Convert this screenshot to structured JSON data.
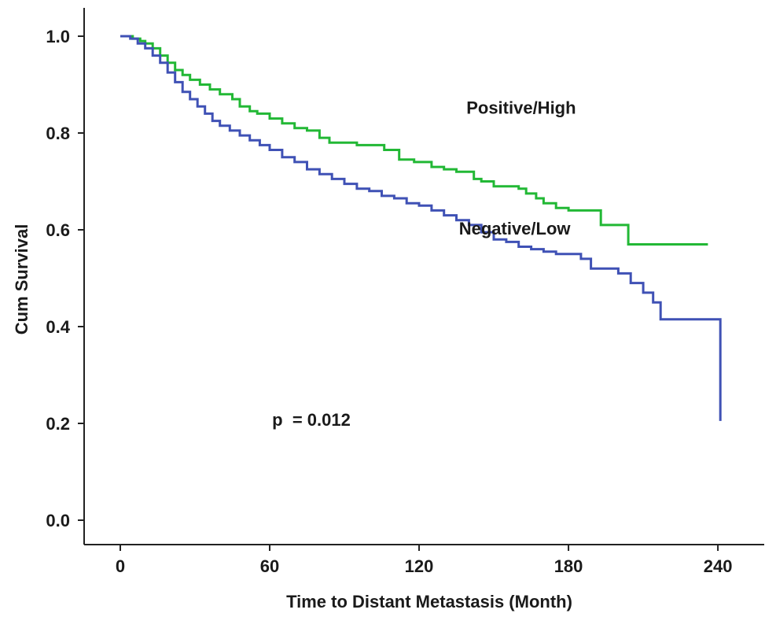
{
  "chart_data": {
    "type": "line",
    "title": "",
    "xlabel": "Time to Distant Metastasis (Month)",
    "ylabel": "Cum Survival",
    "xlim": [
      -10,
      260
    ],
    "ylim": [
      -0.05,
      1.05
    ],
    "xticks": [
      0,
      60,
      120,
      180,
      240
    ],
    "xtick_labels": [
      "0",
      "60",
      "120",
      "180",
      "240"
    ],
    "yticks": [
      0.0,
      0.2,
      0.4,
      0.6,
      0.8,
      1.0
    ],
    "ytick_labels": [
      "0.0",
      "0.2",
      "0.4",
      "0.6",
      "0.8",
      "1.0"
    ],
    "grid": false,
    "series": [
      {
        "name": "Positive/High",
        "color": "#22b835",
        "step": true,
        "x": [
          0,
          5,
          8,
          10,
          13,
          16,
          19,
          22,
          25,
          28,
          32,
          36,
          40,
          45,
          48,
          52,
          55,
          60,
          65,
          70,
          75,
          80,
          84,
          90,
          95,
          100,
          106,
          112,
          118,
          125,
          130,
          135,
          142,
          145,
          150,
          160,
          163,
          167,
          170,
          175,
          180,
          190,
          193,
          197,
          204,
          236
        ],
        "y": [
          1.0,
          0.995,
          0.99,
          0.985,
          0.975,
          0.96,
          0.945,
          0.93,
          0.92,
          0.91,
          0.9,
          0.89,
          0.88,
          0.87,
          0.855,
          0.845,
          0.84,
          0.83,
          0.82,
          0.81,
          0.805,
          0.79,
          0.78,
          0.78,
          0.775,
          0.775,
          0.765,
          0.745,
          0.74,
          0.73,
          0.725,
          0.72,
          0.705,
          0.7,
          0.69,
          0.685,
          0.675,
          0.665,
          0.655,
          0.645,
          0.64,
          0.64,
          0.61,
          0.61,
          0.57,
          0.57
        ]
      },
      {
        "name": "Negative/Low",
        "color": "#3f51b5",
        "step": true,
        "x": [
          0,
          4,
          7,
          10,
          13,
          16,
          19,
          22,
          25,
          28,
          31,
          34,
          37,
          40,
          44,
          48,
          52,
          56,
          60,
          65,
          70,
          75,
          80,
          85,
          90,
          95,
          100,
          105,
          110,
          115,
          120,
          125,
          130,
          135,
          140,
          145,
          150,
          155,
          160,
          165,
          170,
          175,
          180,
          185,
          189,
          195,
          200,
          205,
          210,
          214,
          217,
          222,
          241
        ],
        "y": [
          1.0,
          0.995,
          0.985,
          0.975,
          0.96,
          0.945,
          0.925,
          0.905,
          0.885,
          0.87,
          0.855,
          0.84,
          0.825,
          0.815,
          0.805,
          0.795,
          0.785,
          0.775,
          0.765,
          0.75,
          0.74,
          0.725,
          0.715,
          0.705,
          0.695,
          0.685,
          0.68,
          0.67,
          0.665,
          0.655,
          0.65,
          0.64,
          0.63,
          0.62,
          0.61,
          0.595,
          0.58,
          0.575,
          0.565,
          0.56,
          0.555,
          0.55,
          0.55,
          0.54,
          0.52,
          0.52,
          0.51,
          0.49,
          0.47,
          0.45,
          0.415,
          0.415,
          0.205
        ]
      }
    ],
    "annotations": [
      {
        "id": "pos-high",
        "text": "Positive/High",
        "x": 139,
        "y": 0.84
      },
      {
        "id": "neg-low",
        "text": "Negative/Low",
        "x": 136,
        "y": 0.59
      },
      {
        "id": "pvalue",
        "text": "p  = 0.012",
        "x": 61,
        "y": 0.195
      }
    ]
  }
}
